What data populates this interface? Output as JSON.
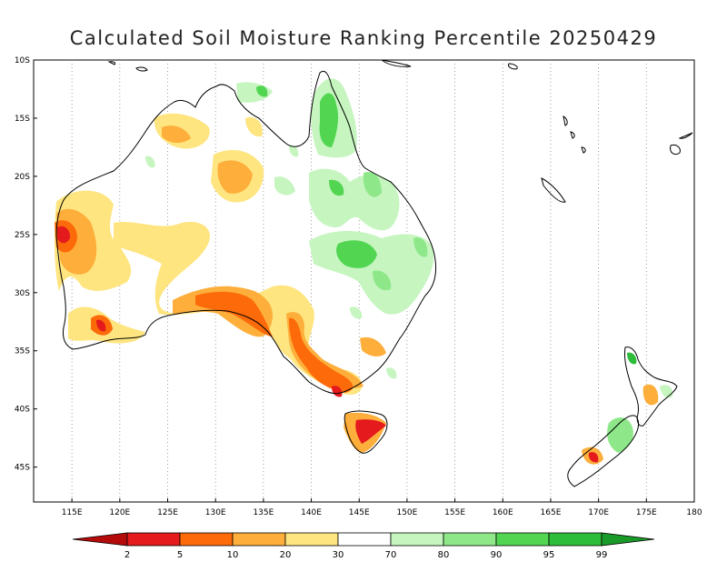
{
  "title": "Calculated Soil Moisture Ranking Percentile 20250429",
  "map": {
    "lon_range": [
      111,
      180
    ],
    "lat_range": [
      -48,
      -10
    ],
    "lon_ticks": [
      "115E",
      "120E",
      "125E",
      "130E",
      "135E",
      "140E",
      "145E",
      "150E",
      "155E",
      "160E",
      "165E",
      "170E",
      "175E",
      "180"
    ],
    "lat_ticks": [
      "10S",
      "15S",
      "20S",
      "25S",
      "30S",
      "35S",
      "40S",
      "45S"
    ],
    "grid": true
  },
  "legend": {
    "labels": [
      "2",
      "5",
      "10",
      "20",
      "30",
      "70",
      "80",
      "90",
      "95",
      "99"
    ],
    "colors": [
      "#b40a0a",
      "#e41a1c",
      "#fc6a0a",
      "#fdae3b",
      "#fee580",
      "#ffffff",
      "#c6f5c0",
      "#8ee88a",
      "#52d652",
      "#2ebd3a",
      "#1a9a28"
    ]
  }
}
